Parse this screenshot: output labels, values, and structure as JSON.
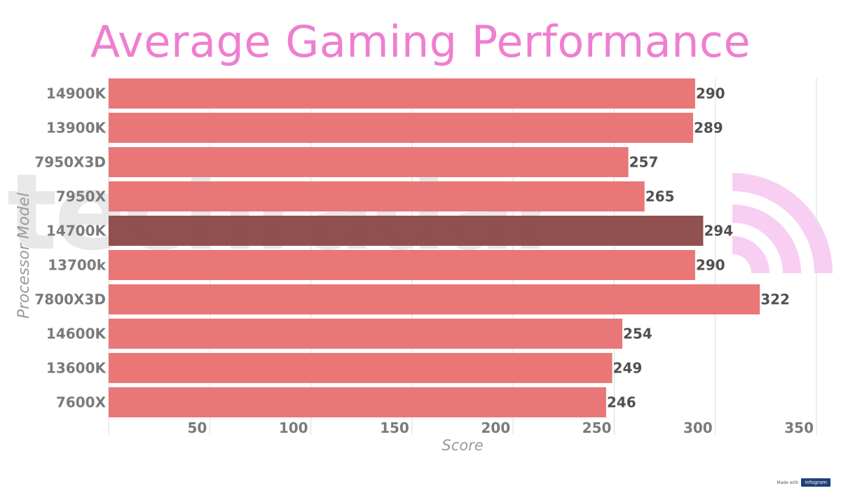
{
  "title": "Average Gaming Performance",
  "watermark": "techradar",
  "badge": {
    "made_with": "Made with",
    "brand": "infogram"
  },
  "colors": {
    "title": "#ee7fcf",
    "bar": "#e97777",
    "highlight_bar": "#8b4848",
    "gridline": "#dcdcdc",
    "watermark_signal": "#f7c6f0"
  },
  "chart_data": {
    "type": "bar",
    "orientation": "horizontal",
    "title": "Average Gaming Performance",
    "xlabel": "Score",
    "ylabel": "Processor Model",
    "categories": [
      "14900K",
      "13900K",
      "7950X3D",
      "7950X",
      "14700K",
      "13700k",
      "7800X3D",
      "14600K",
      "13600K",
      "7600X"
    ],
    "values": [
      290,
      289,
      257,
      265,
      294,
      290,
      322,
      254,
      249,
      246
    ],
    "highlight": "14700K",
    "xlim": [
      0,
      350
    ],
    "xticks": [
      50,
      100,
      150,
      200,
      250,
      300,
      350
    ],
    "grid": true,
    "legend": "none"
  }
}
